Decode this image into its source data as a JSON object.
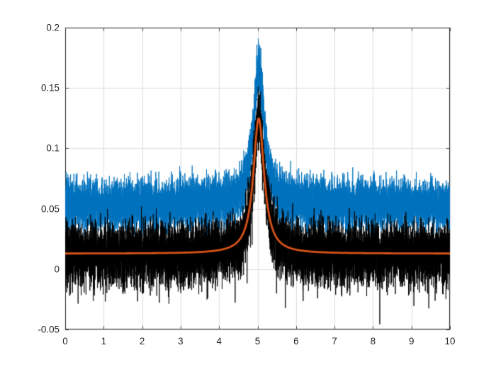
{
  "figure": {
    "background": "#ffffff",
    "kind": "matlab-style plot, no title, no axis labels, no legend"
  },
  "chart_data": {
    "type": "line",
    "title": "",
    "xlabel": "",
    "ylabel": "",
    "xlim": [
      0,
      10
    ],
    "ylim": [
      -0.05,
      0.2
    ],
    "x_ticks": [
      0,
      1,
      2,
      3,
      4,
      5,
      6,
      7,
      8,
      9,
      10
    ],
    "x_tick_labels": [
      "0",
      "1",
      "2",
      "3",
      "4",
      "5",
      "6",
      "7",
      "8",
      "9",
      "10"
    ],
    "y_ticks": [
      -0.05,
      0,
      0.05,
      0.1,
      0.15,
      0.2
    ],
    "y_tick_labels": [
      "-0.05",
      "0",
      "0.05",
      "0.1",
      "0.15",
      "0.2"
    ],
    "grid": true,
    "legend_position": "none",
    "axis_color": "#262626",
    "grid_color": "#dedede",
    "tick_length": 5,
    "model": {
      "shape": "lorentzian",
      "baseline": 0.0128,
      "amplitude": 0.112,
      "center": 5.03,
      "hwhm": 0.17
    },
    "series": [
      {
        "name": "noisy-upper-trace",
        "color": "#0072BD",
        "kind": "noisy",
        "description": "dense blue noise band from ~0.033 to ~0.074 over flat region, rising to a spike of ~0.19 at x=5",
        "offset": 0.04,
        "sigma": 0.0105,
        "spike_prob": 0.012,
        "spike_max": 0.008,
        "spike_sign": 1,
        "points": 9000,
        "seed": 71,
        "line_width": 0.9,
        "flat_band": [
          0.033,
          0.074
        ],
        "peak_value": 0.19
      },
      {
        "name": "noisy-lower-trace",
        "color": "#000000",
        "kind": "noisy",
        "description": "dense black noise band from ~-0.015 to ~0.03 with downward spikes reaching ~-0.048, rising to a spike of ~0.15 at x=5",
        "offset": 0.0,
        "sigma": 0.0125,
        "spike_prob": 0.05,
        "spike_max": 0.03,
        "spike_sign": -1,
        "points": 9000,
        "seed": 913,
        "line_width": 0.9,
        "flat_band": [
          -0.015,
          0.03
        ],
        "spike_floor": -0.048,
        "peak_value": 0.15
      },
      {
        "name": "smooth-fit-curve",
        "color": "#D95319",
        "kind": "smooth",
        "description": "smooth orange Lorentzian curve: baseline ~0.013, peak ~0.125 at x=5.03",
        "line_width": 2.8,
        "points": 900,
        "baseline_value": 0.0128,
        "peak_value": 0.125
      }
    ]
  }
}
